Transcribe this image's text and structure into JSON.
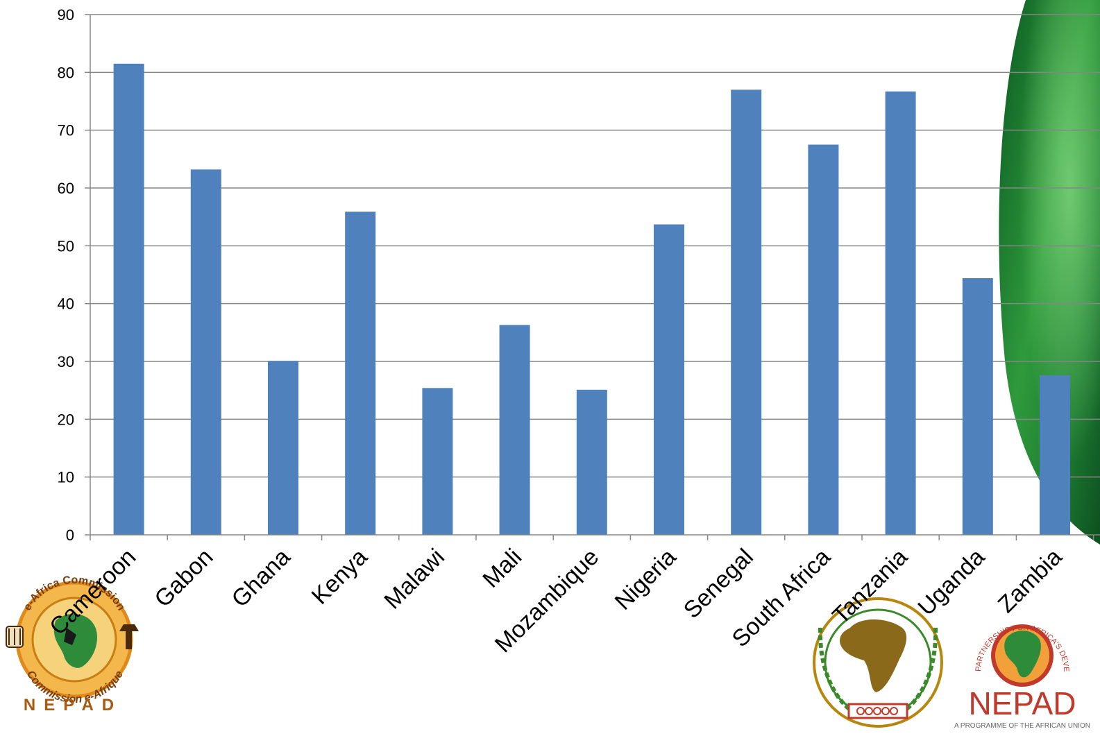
{
  "chart_data": {
    "type": "bar",
    "categories": [
      "Cameroon",
      "Gabon",
      "Ghana",
      "Kenya",
      "Malawi",
      "Mali",
      "Mozambique",
      "Nigeria",
      "Senegal",
      "South Africa",
      "Tanzania",
      "Uganda",
      "Zambia"
    ],
    "values": [
      81.5,
      63.2,
      30.1,
      55.9,
      25.4,
      36.3,
      25.1,
      53.7,
      77.0,
      67.5,
      76.7,
      44.4,
      27.6
    ],
    "yticks": [
      0,
      10,
      20,
      30,
      40,
      50,
      60,
      70,
      80,
      90
    ],
    "ylim": [
      0,
      90
    ],
    "title": "",
    "xlabel": "",
    "ylabel": "",
    "grid": true,
    "legend": "none",
    "bar_color": "#4f81bd",
    "grid_color": "#868686"
  },
  "logos": {
    "left": {
      "arc_top": "e-Africa Commission",
      "arc_bottom": "Commission e-Afrique",
      "wordmark": "NEPAD"
    },
    "right": {
      "arc": "THE NEW PARTNERSHIP FOR AFRICA'S DEVELOPMENT",
      "wordmark": "NEPAD",
      "tagline": "A PROGRAMME OF THE AFRICAN UNION"
    }
  },
  "colors": {
    "green_dark": "#0d6b2a",
    "green_light": "#3aa84a",
    "nepad_red": "#c0392b",
    "au_gold": "#b8860b"
  }
}
